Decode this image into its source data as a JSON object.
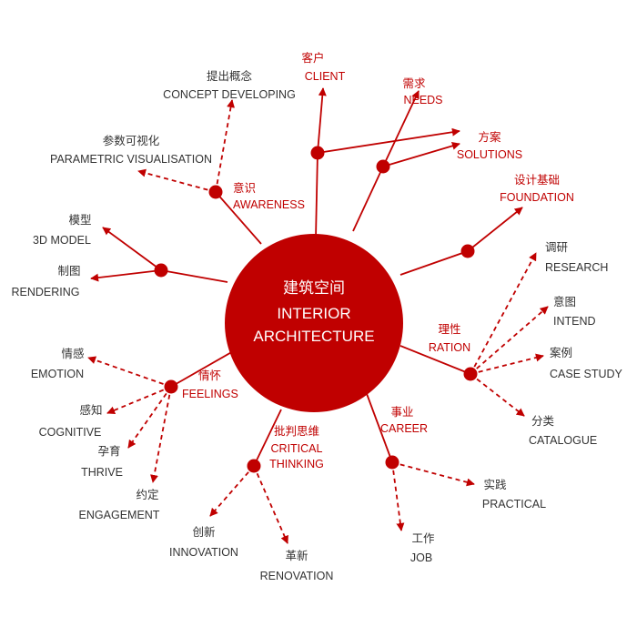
{
  "center": {
    "cn": "建筑空间",
    "en1": "INTERIOR",
    "en2": "ARCHITECTURE"
  },
  "colors": {
    "accent": "#c00000",
    "text": "#333333"
  },
  "categories": {
    "client": {
      "cn": "客户",
      "en": "CLIENT"
    },
    "needs": {
      "cn": "需求",
      "en": "NEEDS"
    },
    "solutions": {
      "cn": "方案",
      "en": "SOLUTIONS"
    },
    "foundation": {
      "cn": "设计基础",
      "en": "FOUNDATION"
    },
    "awareness": {
      "cn": "意识",
      "en": "AWARENESS"
    },
    "ration": {
      "cn": "理性",
      "en": "RATION"
    },
    "feelings": {
      "cn": "情怀",
      "en": "FEELINGS"
    },
    "critical": {
      "cn": "批判思维",
      "en1": "CRITICAL",
      "en2": "THINKING"
    },
    "career": {
      "cn": "事业",
      "en": "CAREER"
    }
  },
  "leaves": {
    "concept": {
      "cn": "提出概念",
      "en": "CONCEPT DEVELOPING"
    },
    "parametric": {
      "cn": "参数可视化",
      "en": "PARAMETRIC VISUALISATION"
    },
    "model": {
      "cn": "模型",
      "en": "3D MODEL"
    },
    "rendering": {
      "cn": "制图",
      "en": "RENDERING"
    },
    "research": {
      "cn": "调研",
      "en": "RESEARCH"
    },
    "intend": {
      "cn": "意图",
      "en": "INTEND"
    },
    "casestudy": {
      "cn": "案例",
      "en": "CASE STUDY"
    },
    "catalogue": {
      "cn": "分类",
      "en": "CATALOGUE"
    },
    "emotion": {
      "cn": "情感",
      "en": "EMOTION"
    },
    "cognitive": {
      "cn": "感知",
      "en": "COGNITIVE"
    },
    "thrive": {
      "cn": "孕育",
      "en": "THRIVE"
    },
    "engagement": {
      "cn": "约定",
      "en": "ENGAGEMENT"
    },
    "innovation": {
      "cn": "创新",
      "en": "INNOVATION"
    },
    "renovation": {
      "cn": "革新",
      "en": "RENOVATION"
    },
    "practical": {
      "cn": "实践",
      "en": "PRACTICAL"
    },
    "job": {
      "cn": "工作",
      "en": "JOB"
    }
  }
}
